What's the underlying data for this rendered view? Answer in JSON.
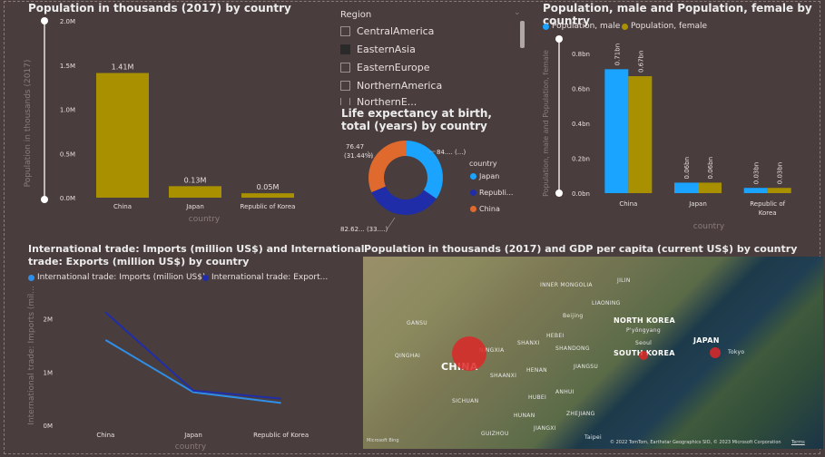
{
  "bar_pop": {
    "title": "Population in thousands (2017) by country",
    "ylabel": "Population in thousands (2017)",
    "xlabel": "country",
    "yticks": [
      "0.0M",
      "0.5M",
      "1.0M",
      "1.5M",
      "2.0M"
    ],
    "chart_data": {
      "type": "bar",
      "categories": [
        "China",
        "Japan",
        "Republic of Korea"
      ],
      "values": [
        1.41,
        0.13,
        0.05
      ],
      "labels": [
        "1.41M",
        "0.13M",
        "0.05M"
      ],
      "ylim": [
        0,
        2.0
      ],
      "color": "#a89000"
    }
  },
  "slicer": {
    "title": "Region",
    "items": [
      {
        "label": "CentralAmerica",
        "checked": false
      },
      {
        "label": "EasternAsia",
        "checked": true
      },
      {
        "label": "EasternEurope",
        "checked": false
      },
      {
        "label": "NorthernAmerica",
        "checked": false
      },
      {
        "label": "NorthernE...",
        "checked": false
      }
    ]
  },
  "donut": {
    "title": "Life expectancy at birth, total (years) by country",
    "legend_title": "country",
    "labels": [
      "76.47",
      "(31.44%)",
      "84.... (...)",
      "82.62... (33....)"
    ],
    "chart_data": {
      "type": "pie",
      "categories": [
        "Japan",
        "Republi...",
        "China"
      ],
      "values": [
        84.0,
        82.62,
        76.47
      ],
      "colors": [
        "#1aa3ff",
        "#1f2ea8",
        "#e06a2e"
      ]
    }
  },
  "bar_gender": {
    "title": "Population, male and Population, female by country",
    "ylabel": "Population, male and Population, female",
    "xlabel": "country",
    "yticks": [
      "0.0bn",
      "0.2bn",
      "0.4bn",
      "0.6bn",
      "0.8bn"
    ],
    "chart_data": {
      "type": "bar",
      "categories": [
        "China",
        "Japan",
        "Republic of Korea"
      ],
      "series": [
        {
          "name": "Population, male",
          "values": [
            0.71,
            0.06,
            0.03
          ],
          "labels": [
            "0.71bn",
            "0.06bn",
            "0.03bn"
          ],
          "color": "#1aa3ff"
        },
        {
          "name": "Population, female",
          "values": [
            0.67,
            0.06,
            0.03
          ],
          "labels": [
            "0.67bn",
            "0.06bn",
            "0.03bn"
          ],
          "color": "#a89000"
        }
      ],
      "ylim": [
        0,
        0.8
      ]
    }
  },
  "line_trade": {
    "title1": "International trade: Imports (million US$) and International",
    "title2": "trade: Exports (million US$) by country",
    "ylabel": "International trade: Imports (mil...",
    "xlabel": "country",
    "yticks": [
      "0M",
      "1M",
      "2M"
    ],
    "chart_data": {
      "type": "line",
      "categories": [
        "China",
        "Japan",
        "Republic of Korea"
      ],
      "series": [
        {
          "name": "International trade: Imports (million US$)",
          "values": [
            1.6,
            0.62,
            0.42
          ],
          "color": "#2f8fe8"
        },
        {
          "name": "International trade: Export...",
          "values": [
            2.12,
            0.65,
            0.5
          ],
          "color": "#1f2ea8"
        }
      ],
      "ylim": [
        0,
        2.3
      ]
    }
  },
  "map": {
    "title": "Population in thousands (2017) and GDP per capita (current US$) by country",
    "labels": [
      "INNER MONGOLIA",
      "JILIN",
      "LIAONING",
      "GANSU",
      "Beijing",
      "NORTH KOREA",
      "P'yŏngyang",
      "Seoul",
      "SOUTH KOREA",
      "JAPAN",
      "Tokyo",
      "QINGHAI",
      "CHINA",
      "SHANXI",
      "HEBEI",
      "SHANDONG",
      "SHAANXI",
      "JIANGSU",
      "ANHUI",
      "SICHUAN",
      "HUBEI",
      "HUNAN",
      "GUIZHOU",
      "Taipei",
      "ZHEJIANG",
      "JIANGXI",
      "NINGXIA",
      "HENAN"
    ],
    "attribution": "© 2022 TomTom, Earthstar Geographics SIO, © 2023 Microsoft Corporation",
    "terms": "Terms",
    "logo": "Microsoft Bing"
  }
}
